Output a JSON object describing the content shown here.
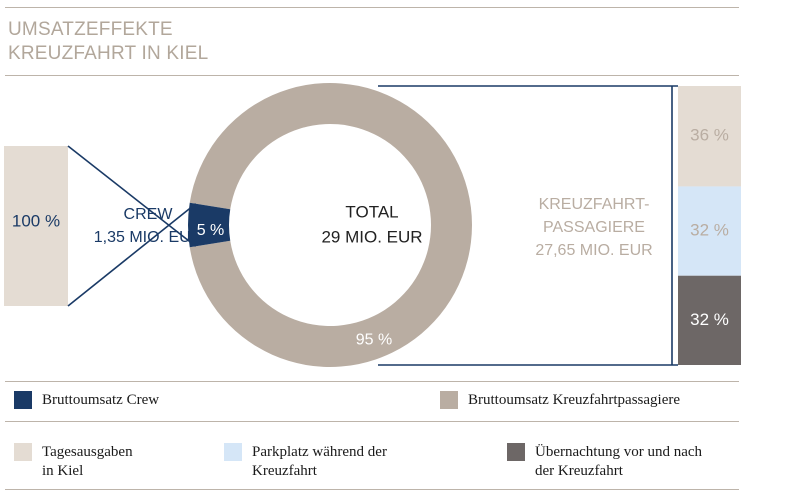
{
  "header": {
    "title_line1": "UMSATZEFFEKTE",
    "title_line2": "KREUZFAHRT IN KIEL"
  },
  "colors": {
    "crew": "#1a3a66",
    "passengers": "#b9ada2",
    "day_spending": "#e4dcd3",
    "parking": "#d5e6f7",
    "overnight": "#6d6766",
    "line": "#1a3a66",
    "title": "#b2a79b",
    "rule": "#bdb4aa"
  },
  "chart_data": {
    "type": "donut",
    "center": {
      "label1": "TOTAL",
      "label2": "29 MIO. EUR"
    },
    "slices": [
      {
        "name": "Bruttoumsatz Crew",
        "value": 5,
        "label": "5 %",
        "amount": "1,35 MIO. EUR"
      },
      {
        "name": "Bruttoumsatz Kreuzfahrtpassagiere",
        "value": 95,
        "label": "95 %",
        "amount": "27,65 MIO. EUR"
      }
    ],
    "crew_breakdown": {
      "title": "CREW",
      "subtitle": "1,35 MIO. EUR",
      "segments": [
        {
          "value": 100,
          "label": "100 %"
        }
      ]
    },
    "passenger_breakdown": {
      "title1": "KREUZFAHRT-",
      "title2": "PASSAGIERE",
      "subtitle": "27,65 MIO. EUR",
      "segments": [
        {
          "name": "Tagesausgaben in Kiel",
          "value": 36,
          "label": "36 %"
        },
        {
          "name": "Parkplatz während der Kreuzfahrt",
          "value": 32,
          "label": "32 %"
        },
        {
          "name": "Übernachtung vor und nach der Kreuzfahrt",
          "value": 32,
          "label": "32 %"
        }
      ]
    }
  },
  "legend": {
    "crew": "Bruttoumsatz Crew",
    "passengers": "Bruttoumsatz Kreuzfahrtpassagiere",
    "day_spending": "Tagesausgaben\nin Kiel",
    "parking": "Parkplatz während der\nKreuzfahrt",
    "overnight": "Übernachtung vor und nach\nder Kreuzfahrt"
  }
}
